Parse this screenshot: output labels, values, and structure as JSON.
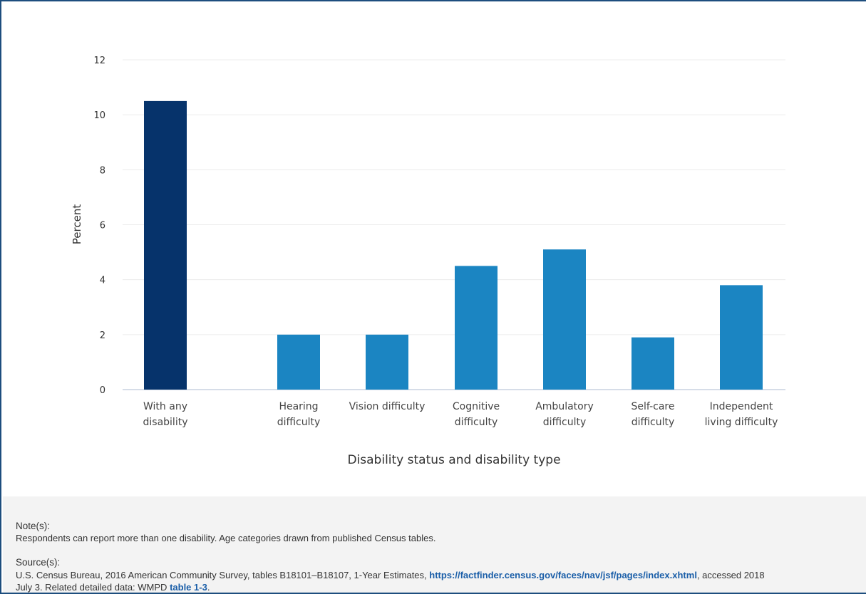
{
  "chart_data": {
    "type": "bar",
    "categories": [
      [
        "With any",
        "disability"
      ],
      [
        "Hearing",
        "difficulty"
      ],
      [
        "Vision difficulty"
      ],
      [
        "Cognitive",
        "difficulty"
      ],
      [
        "Ambulatory",
        "difficulty"
      ],
      [
        "Self-care",
        "difficulty"
      ],
      [
        "Independent",
        "living difficulty"
      ]
    ],
    "values": [
      10.5,
      2.0,
      2.0,
      4.5,
      5.1,
      1.9,
      3.8
    ],
    "bar_colors": [
      "#06336b",
      "#1b85c2",
      "#1b85c2",
      "#1b85c2",
      "#1b85c2",
      "#1b85c2",
      "#1b85c2"
    ],
    "ylabel": "Percent",
    "xlabel": "Disability status and disability type",
    "ylim": [
      0,
      12
    ],
    "yticks": [
      0,
      2,
      4,
      6,
      8,
      10,
      12
    ],
    "grid": true
  },
  "notes": {
    "note_heading": "Note(s):",
    "note_text": "Respondents can report more than one disability. Age categories drawn from published Census tables.",
    "source_heading": "Source(s):",
    "source_text_1": "U.S. Census Bureau, 2016 American Community Survey, tables B18101–B18107, 1-Year Estimates, ",
    "source_link": "https://factfinder.census.gov/faces/nav/jsf/pages/index.xhtml",
    "source_text_2": ", accessed 2018",
    "source_text_3": "July 3. Related detailed data: WMPD ",
    "table_link": "table 1-3",
    "source_text_4": "."
  }
}
